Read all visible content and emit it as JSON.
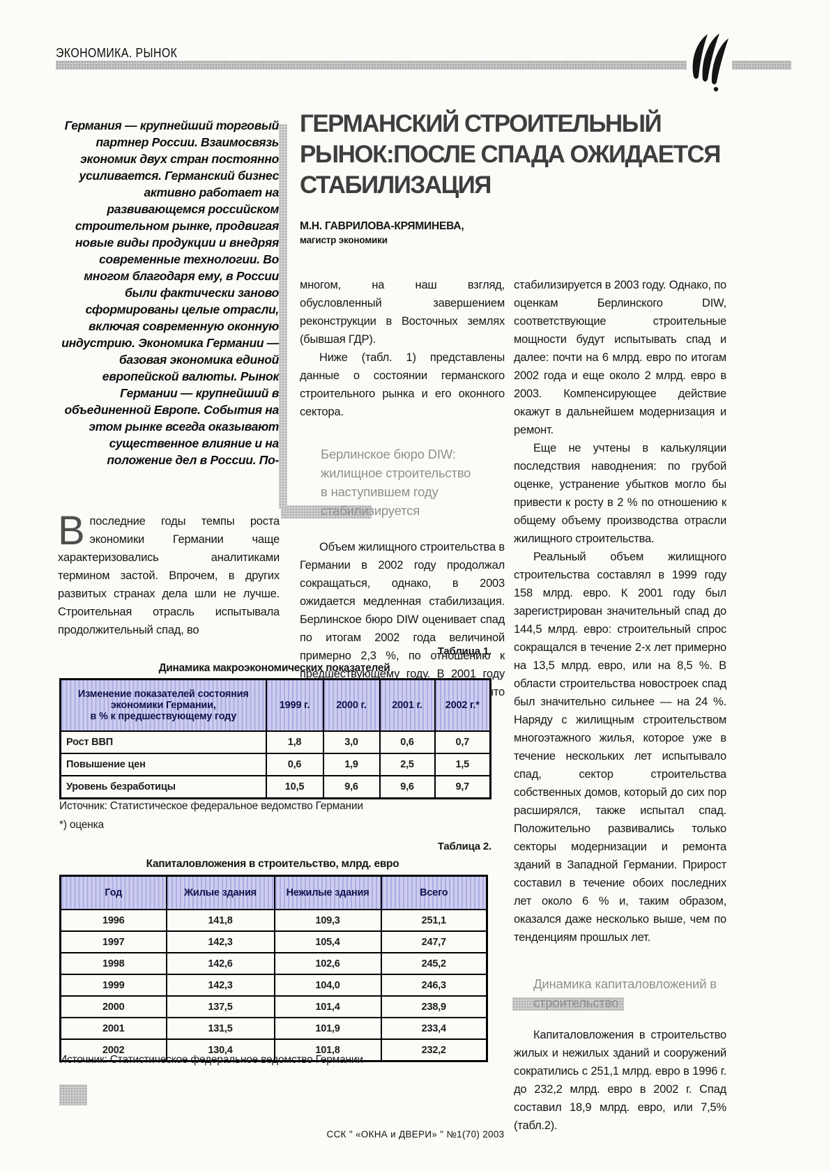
{
  "header": {
    "section_label": "ЭКОНОМИКА. РЫНОК"
  },
  "article": {
    "title_lines": [
      "ГЕРМАНСКИЙ СТРОИТЕЛЬНЫЙ",
      "РЫНОК:ПОСЛЕ СПАДА ОЖИДАЕТСЯ",
      "СТАБИЛИЗАЦИЯ"
    ],
    "author_name": "М.Н. ГАВРИЛОВА-КРЯМИНЕВА,",
    "author_degree": "магистр экономики",
    "lead": "Германия — крупнейший торговый партнер России. Взаимосвязь экономик двух стран постоянно усиливается. Германский бизнес активно работает на развивающемся российском строительном рынке, продвигая новые виды продукции и внедряя современные технологии. Во многом благодаря ему, в России были фактически заново сформированы целые отрасли, включая современную оконную индустрию. Экономика Германии — базовая экономика единой европейской валюты. Рынок Германии — крупнейший в объединенной Европе. События на этом рынке всегда оказывают существенное влияние и на положение дел в России. По-",
    "left_para_dropcap": "В",
    "left_para_text": "последние годы темпы роста экономики Германии чаще характеризовались аналитиками термином застой. Впрочем, в других развитых странах дела шли не лучше. Строительная отрасль испытывала продолжительный спад, во",
    "mid": {
      "p1": "многом, на наш взгляд, обусловленный завершением реконструкции в Восточных землях (бывшая ГДР).",
      "p2": "Ниже (табл. 1) представлены данные о состоянии германского строительного рынка и его оконного сектора.",
      "subhead_lines": [
        "Берлинское бюро DIW:",
        "жилищное строительство",
        "в наступившем году",
        "стабилизируется"
      ],
      "p3": "Объем жилищного строительства в Германии в 2002 году продолжал сокращаться, однако, в 2003 ожидается медленная стабилизация. Берлинское бюро DIW оценивает спад по итогам 2002 года величиной примерно 2,3 %, по отношению к предшествующему году. В 2001 году он составлял 6%. Ожидается, что спрос на новостройки медленно"
    },
    "right": {
      "p1": "стабилизируется в 2003 году. Однако, по оценкам Берлинского DIW, соответствующие строительные мощности будут испытывать спад и далее: почти на 6 млрд. евро по итогам 2002 года и еще около 2 млрд. евро в 2003. Компенсирующее действие окажут в дальнейшем модернизация и ремонт.",
      "p2": "Еще не учтены в калькуляции последствия наводнения: по грубой оценке, устранение убытков могло бы привести к росту в 2 % по отношению к общему объему производства отрасли жилищного строительства.",
      "p3": "Реальный объем жилищного строительства составлял в 1999 году 158 млрд. евро. К 2001 году был зарегистрирован значительный спад до 144,5 млрд. евро: строительный спрос сокращался в течение 2-х лет примерно на 13,5 млрд. евро, или на 8,5 %. В области строительства новостроек спад был значительно сильнее — на 24 %. Наряду с жилищным строительством многоэтажного жилья, которое уже в течение нескольких лет испытывало спад, сектор строительства собственных домов, который до сих пор расширялся, также испытал спад. Положительно развивались только секторы модернизации и ремонта зданий в Западной Германии. Прирост составил в течение обоих последних лет около 6 % и, таким образом, оказался даже несколько выше, чем по тенденциям прошлых лет.",
      "subhead_lines": [
        "Динамика капиталовложений в",
        "строительство"
      ],
      "p4": "Капиталовложения в строительство жилых и нежилых зданий и сооружений сократились с 251,1 млрд. евро в 1996 г. до 232,2 млрд. евро в 2002 г. Спад составил 18,9 млрд. евро, или 7,5% (табл.2)."
    }
  },
  "tables": {
    "t1": {
      "label": "Таблица 1.",
      "title": "Динамика макроэкономических показателей",
      "header": [
        "Изменение показателей состояния\nэкономики Германии,\nв % к предшествующему году",
        "1999 г.",
        "2000 г.",
        "2001 г.",
        "2002 г.*"
      ],
      "rows": [
        [
          "Рост ВВП",
          "1,8",
          "3,0",
          "0,6",
          "0,7"
        ],
        [
          "Повышение цен",
          "0,6",
          "1,9",
          "2,5",
          "1,5"
        ],
        [
          "Уровень безработицы",
          "10,5",
          "9,6",
          "9,6",
          "9,7"
        ]
      ],
      "source": "Источник: Статистическое федеральное ведомство Германии",
      "note": "*) оценка"
    },
    "t2": {
      "label": "Таблица 2.",
      "title": "Капиталовложения в строительство, млрд. евро",
      "header": [
        "Год",
        "Жилые здания",
        "Нежилые здания",
        "Всего"
      ],
      "rows": [
        [
          "1996",
          "141,8",
          "109,3",
          "251,1"
        ],
        [
          "1997",
          "142,3",
          "105,4",
          "247,7"
        ],
        [
          "1998",
          "142,6",
          "102,6",
          "245,2"
        ],
        [
          "1999",
          "142,3",
          "104,0",
          "246,3"
        ],
        [
          "2000",
          "137,5",
          "101,4",
          "238,9"
        ],
        [
          "2001",
          "131,5",
          "101,9",
          "233,4"
        ],
        [
          "2002",
          "130,4",
          "101,8",
          "232,2"
        ]
      ],
      "source": "Источник: Статистическое федеральное ведомство Германии"
    }
  },
  "footer": {
    "text": "ССК \" «ОКНА и ДВЕРИ» \" №1(70) 2003"
  },
  "colors": {
    "page_bg": "#fbfcf8",
    "title_gray": "#3e3e3e",
    "subhead_gray": "#8f8f8f",
    "rule_gray": "#c6c6c6",
    "table_header_lavender": "#cdcdf0"
  }
}
